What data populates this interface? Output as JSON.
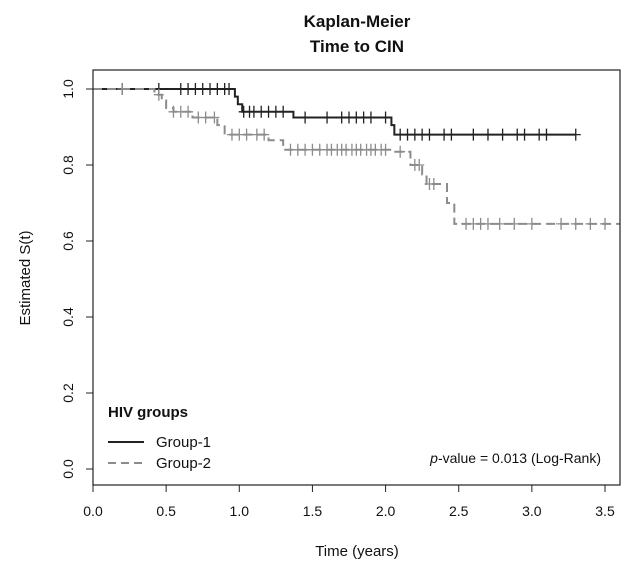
{
  "chart_data": {
    "type": "line",
    "title_line1": "Kaplan-Meier",
    "title_line2": "Time to CIN",
    "xlabel": "Time (years)",
    "ylabel": "Estimated S(t)",
    "xlim": [
      0,
      3.6
    ],
    "ylim": [
      0,
      1.0
    ],
    "xticks": [
      "0.0",
      "0.5",
      "1.0",
      "1.5",
      "2.0",
      "2.5",
      "3.0",
      "3.5"
    ],
    "yticks": [
      "0.0",
      "0.2",
      "0.4",
      "0.6",
      "0.8",
      "1.0"
    ],
    "legend": {
      "title": "HIV groups",
      "placement": "bottom-left",
      "entries": [
        "Group-1",
        "Group-2"
      ]
    },
    "annotation": {
      "italic_part": "p",
      "rest": "-value = 0.013 (Log-Rank)"
    },
    "series": [
      {
        "name": "Group-1",
        "color": "#222222",
        "dash": false,
        "steps": [
          [
            0,
            1.0
          ],
          [
            0.97,
            0.98
          ],
          [
            0.99,
            0.96
          ],
          [
            1.02,
            0.94
          ],
          [
            1.37,
            0.925
          ],
          [
            2.04,
            0.905
          ],
          [
            2.06,
            0.88
          ],
          [
            3.3,
            0.88
          ]
        ],
        "censors": [
          0.2,
          0.45,
          0.6,
          0.65,
          0.7,
          0.75,
          0.8,
          0.85,
          0.9,
          0.93,
          1.03,
          1.07,
          1.1,
          1.15,
          1.2,
          1.25,
          1.3,
          1.45,
          1.6,
          1.7,
          1.75,
          1.8,
          1.85,
          1.9,
          2.0,
          2.1,
          2.15,
          2.2,
          2.25,
          2.3,
          2.4,
          2.45,
          2.6,
          2.7,
          2.8,
          2.9,
          2.95,
          3.05,
          3.1,
          3.3
        ]
      },
      {
        "name": "Group-2",
        "color": "#8c8c8c",
        "dash": true,
        "steps": [
          [
            0,
            1.0
          ],
          [
            0.42,
            0.985
          ],
          [
            0.47,
            0.97
          ],
          [
            0.5,
            0.95
          ],
          [
            0.55,
            0.94
          ],
          [
            0.68,
            0.925
          ],
          [
            0.85,
            0.905
          ],
          [
            0.9,
            0.88
          ],
          [
            1.2,
            0.865
          ],
          [
            1.3,
            0.84
          ],
          [
            2.05,
            0.835
          ],
          [
            2.17,
            0.8
          ],
          [
            2.25,
            0.775
          ],
          [
            2.28,
            0.75
          ],
          [
            2.42,
            0.7
          ],
          [
            2.47,
            0.645
          ],
          [
            3.6,
            0.645
          ]
        ],
        "censors": [
          0.2,
          0.45,
          0.55,
          0.6,
          0.65,
          0.72,
          0.77,
          0.83,
          0.95,
          1.0,
          1.05,
          1.12,
          1.17,
          1.35,
          1.4,
          1.45,
          1.5,
          1.55,
          1.6,
          1.63,
          1.67,
          1.7,
          1.73,
          1.77,
          1.8,
          1.83,
          1.87,
          1.9,
          1.93,
          1.97,
          2.0,
          2.1,
          2.2,
          2.23,
          2.3,
          2.33,
          2.55,
          2.6,
          2.65,
          2.7,
          2.78,
          2.88,
          3.0,
          3.2,
          3.3,
          3.4,
          3.5
        ]
      }
    ]
  }
}
